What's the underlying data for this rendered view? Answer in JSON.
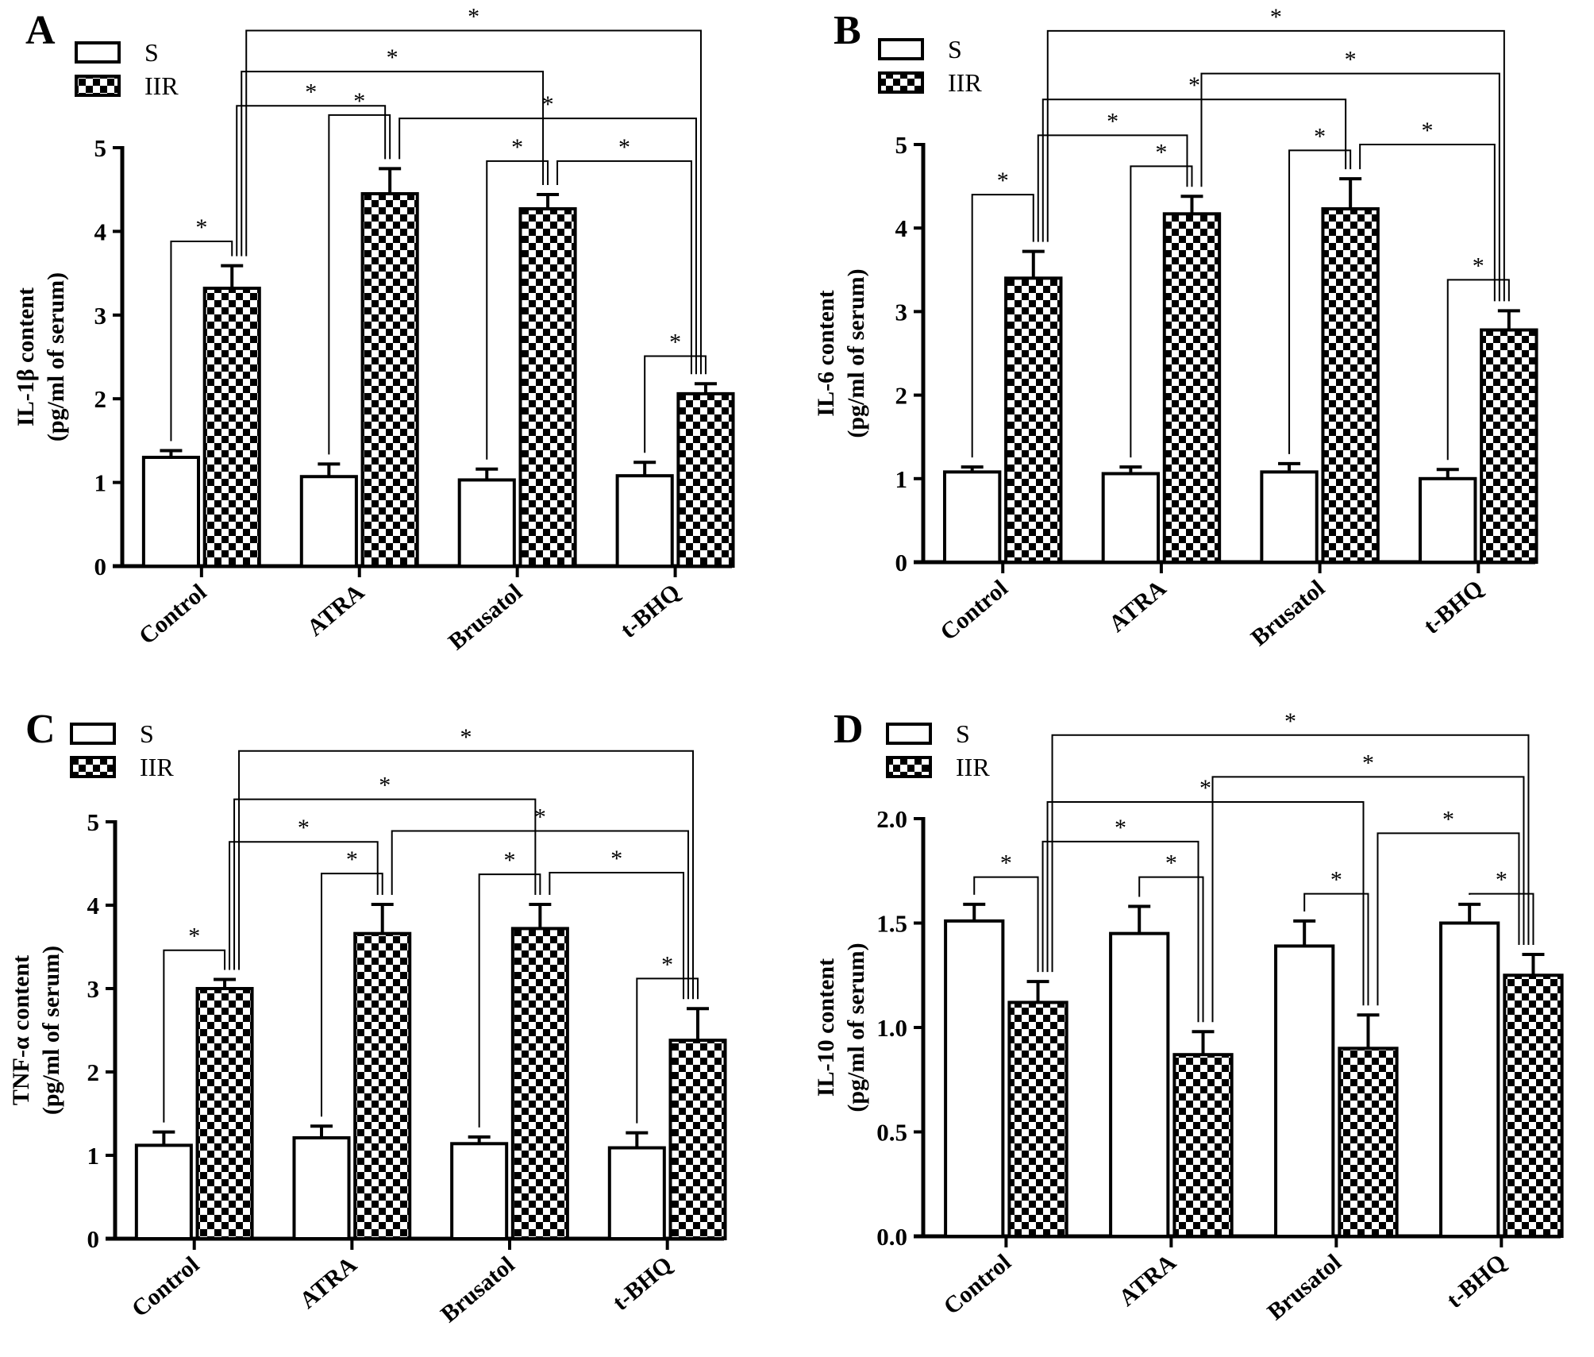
{
  "chart_data": [
    {
      "panel": "A",
      "type": "bar",
      "categories": [
        "Control",
        "ATRA",
        "Brusatol",
        "t-BHQ"
      ],
      "ylabel": [
        "IL-1β content",
        "(pg/ml of serum)"
      ],
      "ylim": [
        0,
        5
      ],
      "yticks": [
        "0",
        "1",
        "2",
        "3",
        "4",
        "5"
      ],
      "ytick_values": [
        0,
        1,
        2,
        3,
        4,
        5
      ],
      "legend": "top-left",
      "series": [
        {
          "name": "S",
          "pattern": "white",
          "values": [
            1.3,
            1.07,
            1.03,
            1.08
          ],
          "errors": [
            0.08,
            0.15,
            0.13,
            0.16
          ]
        },
        {
          "name": "IIR",
          "pattern": "checkerboard",
          "values": [
            3.32,
            4.45,
            4.27,
            2.06
          ],
          "errors": [
            0.27,
            0.3,
            0.17,
            0.12
          ]
        }
      ],
      "significance": [
        {
          "a": [
            0,
            0
          ],
          "b": [
            0,
            1
          ],
          "label": "*"
        },
        {
          "a": [
            1,
            0
          ],
          "b": [
            1,
            1
          ],
          "label": "*"
        },
        {
          "a": [
            2,
            0
          ],
          "b": [
            2,
            1
          ],
          "label": "*"
        },
        {
          "a": [
            3,
            0
          ],
          "b": [
            3,
            1
          ],
          "label": "*"
        },
        {
          "a": [
            0,
            1
          ],
          "b": [
            1,
            1
          ],
          "label": "*"
        },
        {
          "a": [
            0,
            1
          ],
          "b": [
            2,
            1
          ],
          "label": "*"
        },
        {
          "a": [
            0,
            1
          ],
          "b": [
            3,
            1
          ],
          "label": "*"
        },
        {
          "a": [
            1,
            1
          ],
          "b": [
            3,
            1
          ],
          "label": "*"
        },
        {
          "a": [
            2,
            1
          ],
          "b": [
            3,
            1
          ],
          "label": "*"
        }
      ]
    },
    {
      "panel": "B",
      "type": "bar",
      "categories": [
        "Control",
        "ATRA",
        "Brusatol",
        "t-BHQ"
      ],
      "ylabel": [
        "IL-6 content",
        "(pg/ml of serum)"
      ],
      "ylim": [
        0,
        5
      ],
      "yticks": [
        "0",
        "1",
        "2",
        "3",
        "4",
        "5"
      ],
      "ytick_values": [
        0,
        1,
        2,
        3,
        4,
        5
      ],
      "legend": "top-left",
      "series": [
        {
          "name": "S",
          "pattern": "white",
          "values": [
            1.08,
            1.06,
            1.08,
            1.0
          ],
          "errors": [
            0.06,
            0.08,
            0.1,
            0.11
          ]
        },
        {
          "name": "IIR",
          "pattern": "checkerboard",
          "values": [
            3.4,
            4.17,
            4.23,
            2.78
          ],
          "errors": [
            0.32,
            0.21,
            0.36,
            0.23
          ]
        }
      ],
      "significance": [
        {
          "a": [
            0,
            0
          ],
          "b": [
            0,
            1
          ],
          "label": "*"
        },
        {
          "a": [
            1,
            0
          ],
          "b": [
            1,
            1
          ],
          "label": "*"
        },
        {
          "a": [
            2,
            0
          ],
          "b": [
            2,
            1
          ],
          "label": "*"
        },
        {
          "a": [
            3,
            0
          ],
          "b": [
            3,
            1
          ],
          "label": "*"
        },
        {
          "a": [
            0,
            1
          ],
          "b": [
            1,
            1
          ],
          "label": "*"
        },
        {
          "a": [
            0,
            1
          ],
          "b": [
            2,
            1
          ],
          "label": "*"
        },
        {
          "a": [
            0,
            1
          ],
          "b": [
            3,
            1
          ],
          "label": "*"
        },
        {
          "a": [
            1,
            1
          ],
          "b": [
            3,
            1
          ],
          "label": "*"
        },
        {
          "a": [
            2,
            1
          ],
          "b": [
            3,
            1
          ],
          "label": "*"
        }
      ]
    },
    {
      "panel": "C",
      "type": "bar",
      "categories": [
        "Control",
        "ATRA",
        "Brusatol",
        "t-BHQ"
      ],
      "ylabel": [
        "TNF-α content",
        "(pg/ml of serum)"
      ],
      "ylim": [
        0,
        5
      ],
      "yticks": [
        "0",
        "1",
        "2",
        "3",
        "4",
        "5"
      ],
      "ytick_values": [
        0,
        1,
        2,
        3,
        4,
        5
      ],
      "legend": "top-left",
      "series": [
        {
          "name": "S",
          "pattern": "white",
          "values": [
            1.12,
            1.21,
            1.14,
            1.09
          ],
          "errors": [
            0.16,
            0.14,
            0.08,
            0.18
          ]
        },
        {
          "name": "IIR",
          "pattern": "checkerboard",
          "values": [
            3.0,
            3.66,
            3.72,
            2.38
          ],
          "errors": [
            0.11,
            0.35,
            0.29,
            0.38
          ]
        }
      ],
      "significance": [
        {
          "a": [
            0,
            0
          ],
          "b": [
            0,
            1
          ],
          "label": "*"
        },
        {
          "a": [
            1,
            0
          ],
          "b": [
            1,
            1
          ],
          "label": "*"
        },
        {
          "a": [
            2,
            0
          ],
          "b": [
            2,
            1
          ],
          "label": "*"
        },
        {
          "a": [
            3,
            0
          ],
          "b": [
            3,
            1
          ],
          "label": "*"
        },
        {
          "a": [
            0,
            1
          ],
          "b": [
            1,
            1
          ],
          "label": "*"
        },
        {
          "a": [
            0,
            1
          ],
          "b": [
            2,
            1
          ],
          "label": "*"
        },
        {
          "a": [
            0,
            1
          ],
          "b": [
            3,
            1
          ],
          "label": "*"
        },
        {
          "a": [
            1,
            1
          ],
          "b": [
            3,
            1
          ],
          "label": "*"
        },
        {
          "a": [
            2,
            1
          ],
          "b": [
            3,
            1
          ],
          "label": "*"
        }
      ]
    },
    {
      "panel": "D",
      "type": "bar",
      "categories": [
        "Control",
        "ATRA",
        "Brusatol",
        "t-BHQ"
      ],
      "ylabel": [
        "IL-10 content",
        "(pg/ml of serum)"
      ],
      "ylim": [
        0,
        2
      ],
      "yticks": [
        "0.0",
        "0.5",
        "1.0",
        "1.5",
        "2.0"
      ],
      "ytick_values": [
        0,
        0.5,
        1,
        1.5,
        2
      ],
      "legend": "top-left",
      "series": [
        {
          "name": "S",
          "pattern": "white",
          "values": [
            1.51,
            1.45,
            1.39,
            1.5
          ],
          "errors": [
            0.08,
            0.13,
            0.12,
            0.09
          ]
        },
        {
          "name": "IIR",
          "pattern": "checkerboard",
          "values": [
            1.12,
            0.87,
            0.9,
            1.25
          ],
          "errors": [
            0.1,
            0.11,
            0.16,
            0.1
          ]
        }
      ],
      "significance": [
        {
          "a": [
            0,
            0
          ],
          "b": [
            0,
            1
          ],
          "label": "*"
        },
        {
          "a": [
            1,
            0
          ],
          "b": [
            1,
            1
          ],
          "label": "*"
        },
        {
          "a": [
            2,
            0
          ],
          "b": [
            2,
            1
          ],
          "label": "*"
        },
        {
          "a": [
            3,
            0
          ],
          "b": [
            3,
            1
          ],
          "label": "*"
        },
        {
          "a": [
            0,
            1
          ],
          "b": [
            1,
            1
          ],
          "label": "*"
        },
        {
          "a": [
            0,
            1
          ],
          "b": [
            2,
            1
          ],
          "label": "*"
        },
        {
          "a": [
            0,
            1
          ],
          "b": [
            3,
            1
          ],
          "label": "*"
        },
        {
          "a": [
            1,
            1
          ],
          "b": [
            3,
            1
          ],
          "label": "*"
        },
        {
          "a": [
            2,
            1
          ],
          "b": [
            3,
            1
          ],
          "label": "*"
        }
      ]
    }
  ]
}
